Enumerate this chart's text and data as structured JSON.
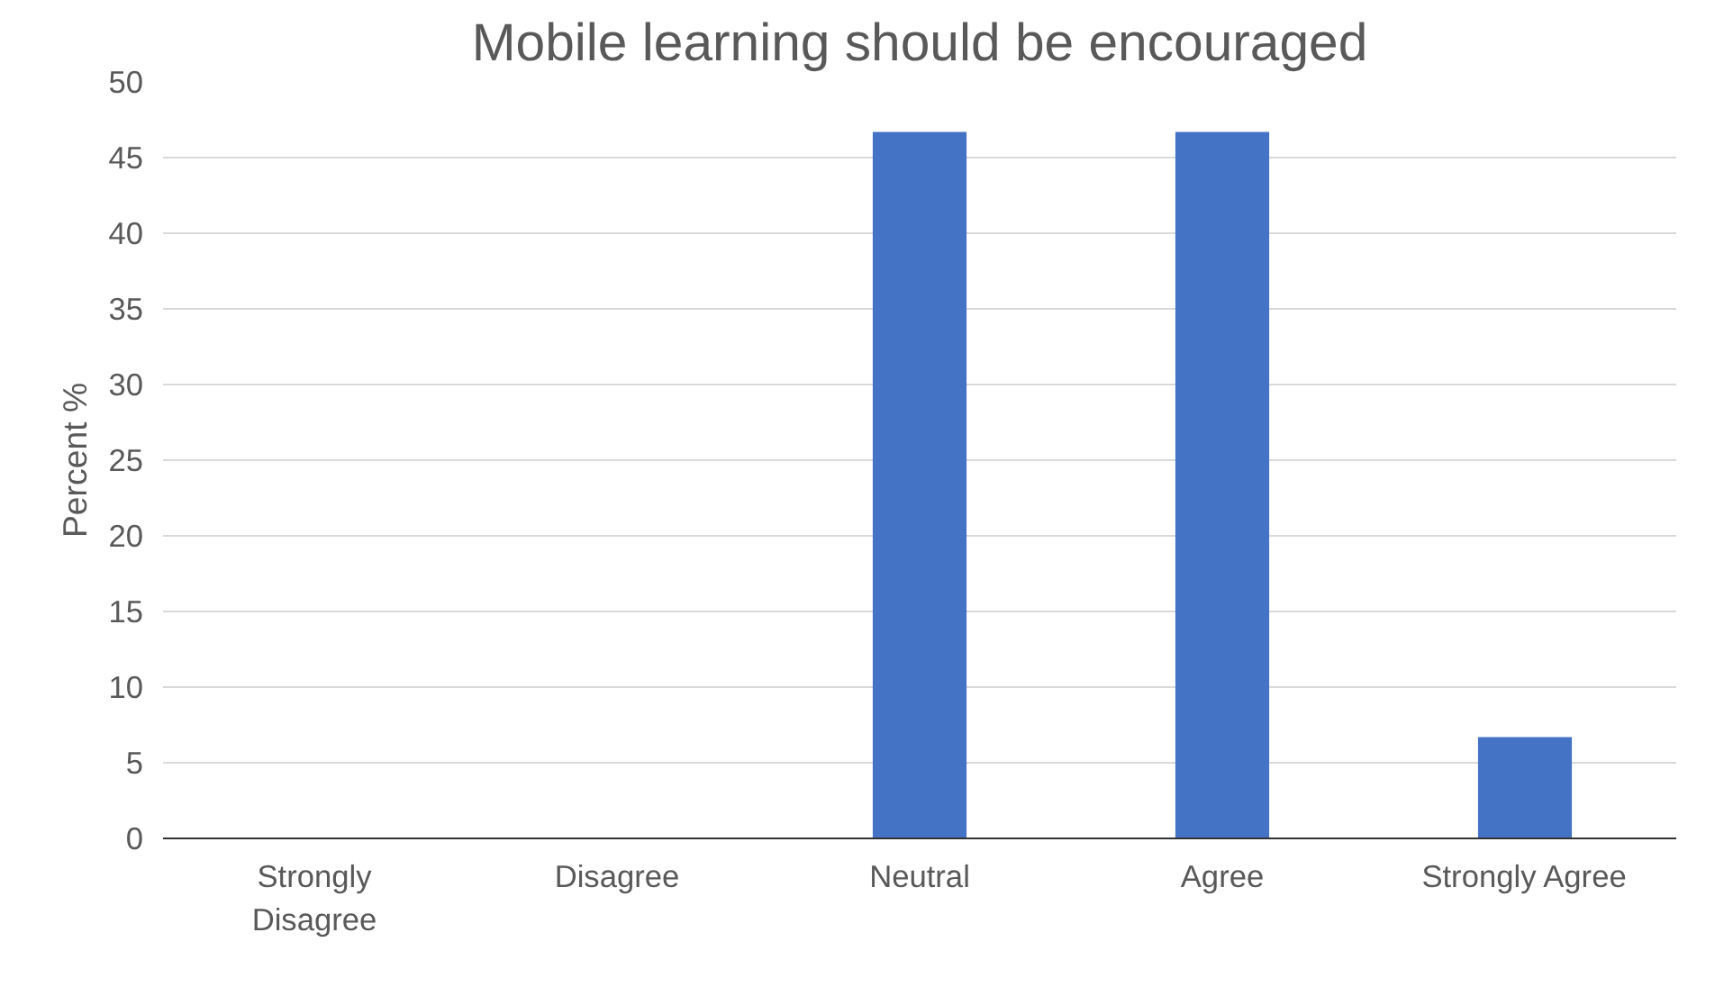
{
  "chart_data": {
    "type": "bar",
    "title": "Mobile learning should be encouraged",
    "ylabel": "Percent %",
    "categories": [
      "Strongly Disagree",
      "Disagree",
      "Neutral",
      "Agree",
      "Strongly Agree"
    ],
    "values": [
      0,
      0,
      46.7,
      46.7,
      6.7
    ],
    "color": "#4472c4",
    "ylim": [
      0,
      50
    ],
    "yticks": [
      0,
      5,
      10,
      15,
      20,
      25,
      30,
      35,
      40,
      45,
      50
    ],
    "grid": "y"
  }
}
